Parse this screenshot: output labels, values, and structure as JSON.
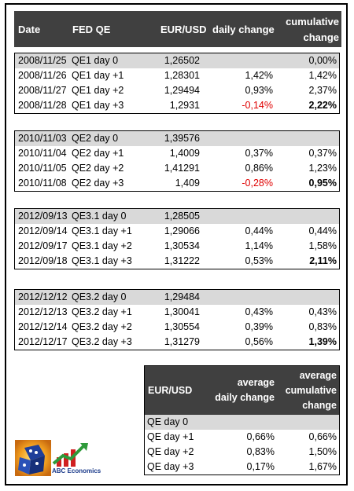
{
  "header": {
    "date": "Date",
    "fedqe": "FED QE",
    "eurusd": "EUR/USD",
    "daily": "daily change",
    "cum1": "cumulative",
    "cum2": "change"
  },
  "blocks": [
    {
      "rows": [
        {
          "date": "2008/11/25",
          "qe": "QE1 day 0",
          "px": "1,26502",
          "dc": "",
          "cc": "0,00%"
        },
        {
          "date": "2008/11/26",
          "qe": "QE1 day +1",
          "px": "1,28301",
          "dc": "1,42%",
          "cc": "1,42%"
        },
        {
          "date": "2008/11/27",
          "qe": "QE1 day +2",
          "px": "1,29494",
          "dc": "0,93%",
          "cc": "2,37%"
        },
        {
          "date": "2008/11/28",
          "qe": "QE1 day +3",
          "px": "1,2931",
          "dc": "-0,14%",
          "cc": "2,22%"
        }
      ]
    },
    {
      "rows": [
        {
          "date": "2010/11/03",
          "qe": "QE2 day 0",
          "px": "1,39576",
          "dc": "",
          "cc": ""
        },
        {
          "date": "2010/11/04",
          "qe": "QE2 day +1",
          "px": "1,4009",
          "dc": "0,37%",
          "cc": "0,37%"
        },
        {
          "date": "2010/11/05",
          "qe": "QE2 day +2",
          "px": "1,41291",
          "dc": "0,86%",
          "cc": "1,23%"
        },
        {
          "date": "2010/11/08",
          "qe": "QE2 day +3",
          "px": "1,409",
          "dc": "-0,28%",
          "cc": "0,95%"
        }
      ]
    },
    {
      "rows": [
        {
          "date": "2012/09/13",
          "qe": "QE3.1 day 0",
          "px": "1,28505",
          "dc": "",
          "cc": ""
        },
        {
          "date": "2012/09/14",
          "qe": "QE3.1 day +1",
          "px": "1,29066",
          "dc": "0,44%",
          "cc": "0,44%"
        },
        {
          "date": "2012/09/17",
          "qe": "QE3.1 day +2",
          "px": "1,30534",
          "dc": "1,14%",
          "cc": "1,58%"
        },
        {
          "date": "2012/09/18",
          "qe": "QE3.1 day +3",
          "px": "1,31222",
          "dc": "0,53%",
          "cc": "2,11%"
        }
      ]
    },
    {
      "rows": [
        {
          "date": "2012/12/12",
          "qe": "QE3.2 day 0",
          "px": "1,29484",
          "dc": "",
          "cc": ""
        },
        {
          "date": "2012/12/13",
          "qe": "QE3.2 day +1",
          "px": "1,30041",
          "dc": "0,43%",
          "cc": "0,43%"
        },
        {
          "date": "2012/12/14",
          "qe": "QE3.2 day +2",
          "px": "1,30554",
          "dc": "0,39%",
          "cc": "0,83%"
        },
        {
          "date": "2012/12/17",
          "qe": "QE3.2 day +3",
          "px": "1,31279",
          "dc": "0,56%",
          "cc": "1,39%"
        }
      ]
    }
  ],
  "average": {
    "header": {
      "eurusd": "EUR/USD",
      "d1": "average",
      "d2": "daily change",
      "c1": "average",
      "c2": "cumulative",
      "c3": "change"
    },
    "rows": [
      {
        "label": "QE day 0",
        "d": "",
        "c": ""
      },
      {
        "label": "QE day +1",
        "d": "0,66%",
        "c": "0,66%"
      },
      {
        "label": "QE day +2",
        "d": "0,83%",
        "c": "1,50%"
      },
      {
        "label": "QE day +3",
        "d": "0,17%",
        "c": "1,67%"
      }
    ]
  },
  "logo": {
    "text": "ABC Economics",
    "brand_blue": "#1a3a8a",
    "green": "#2e9a3a",
    "red": "#d02020"
  },
  "colors": {
    "header_bg": "#404040",
    "day0_bg": "#d9d9d9",
    "negative": "#e00000"
  }
}
